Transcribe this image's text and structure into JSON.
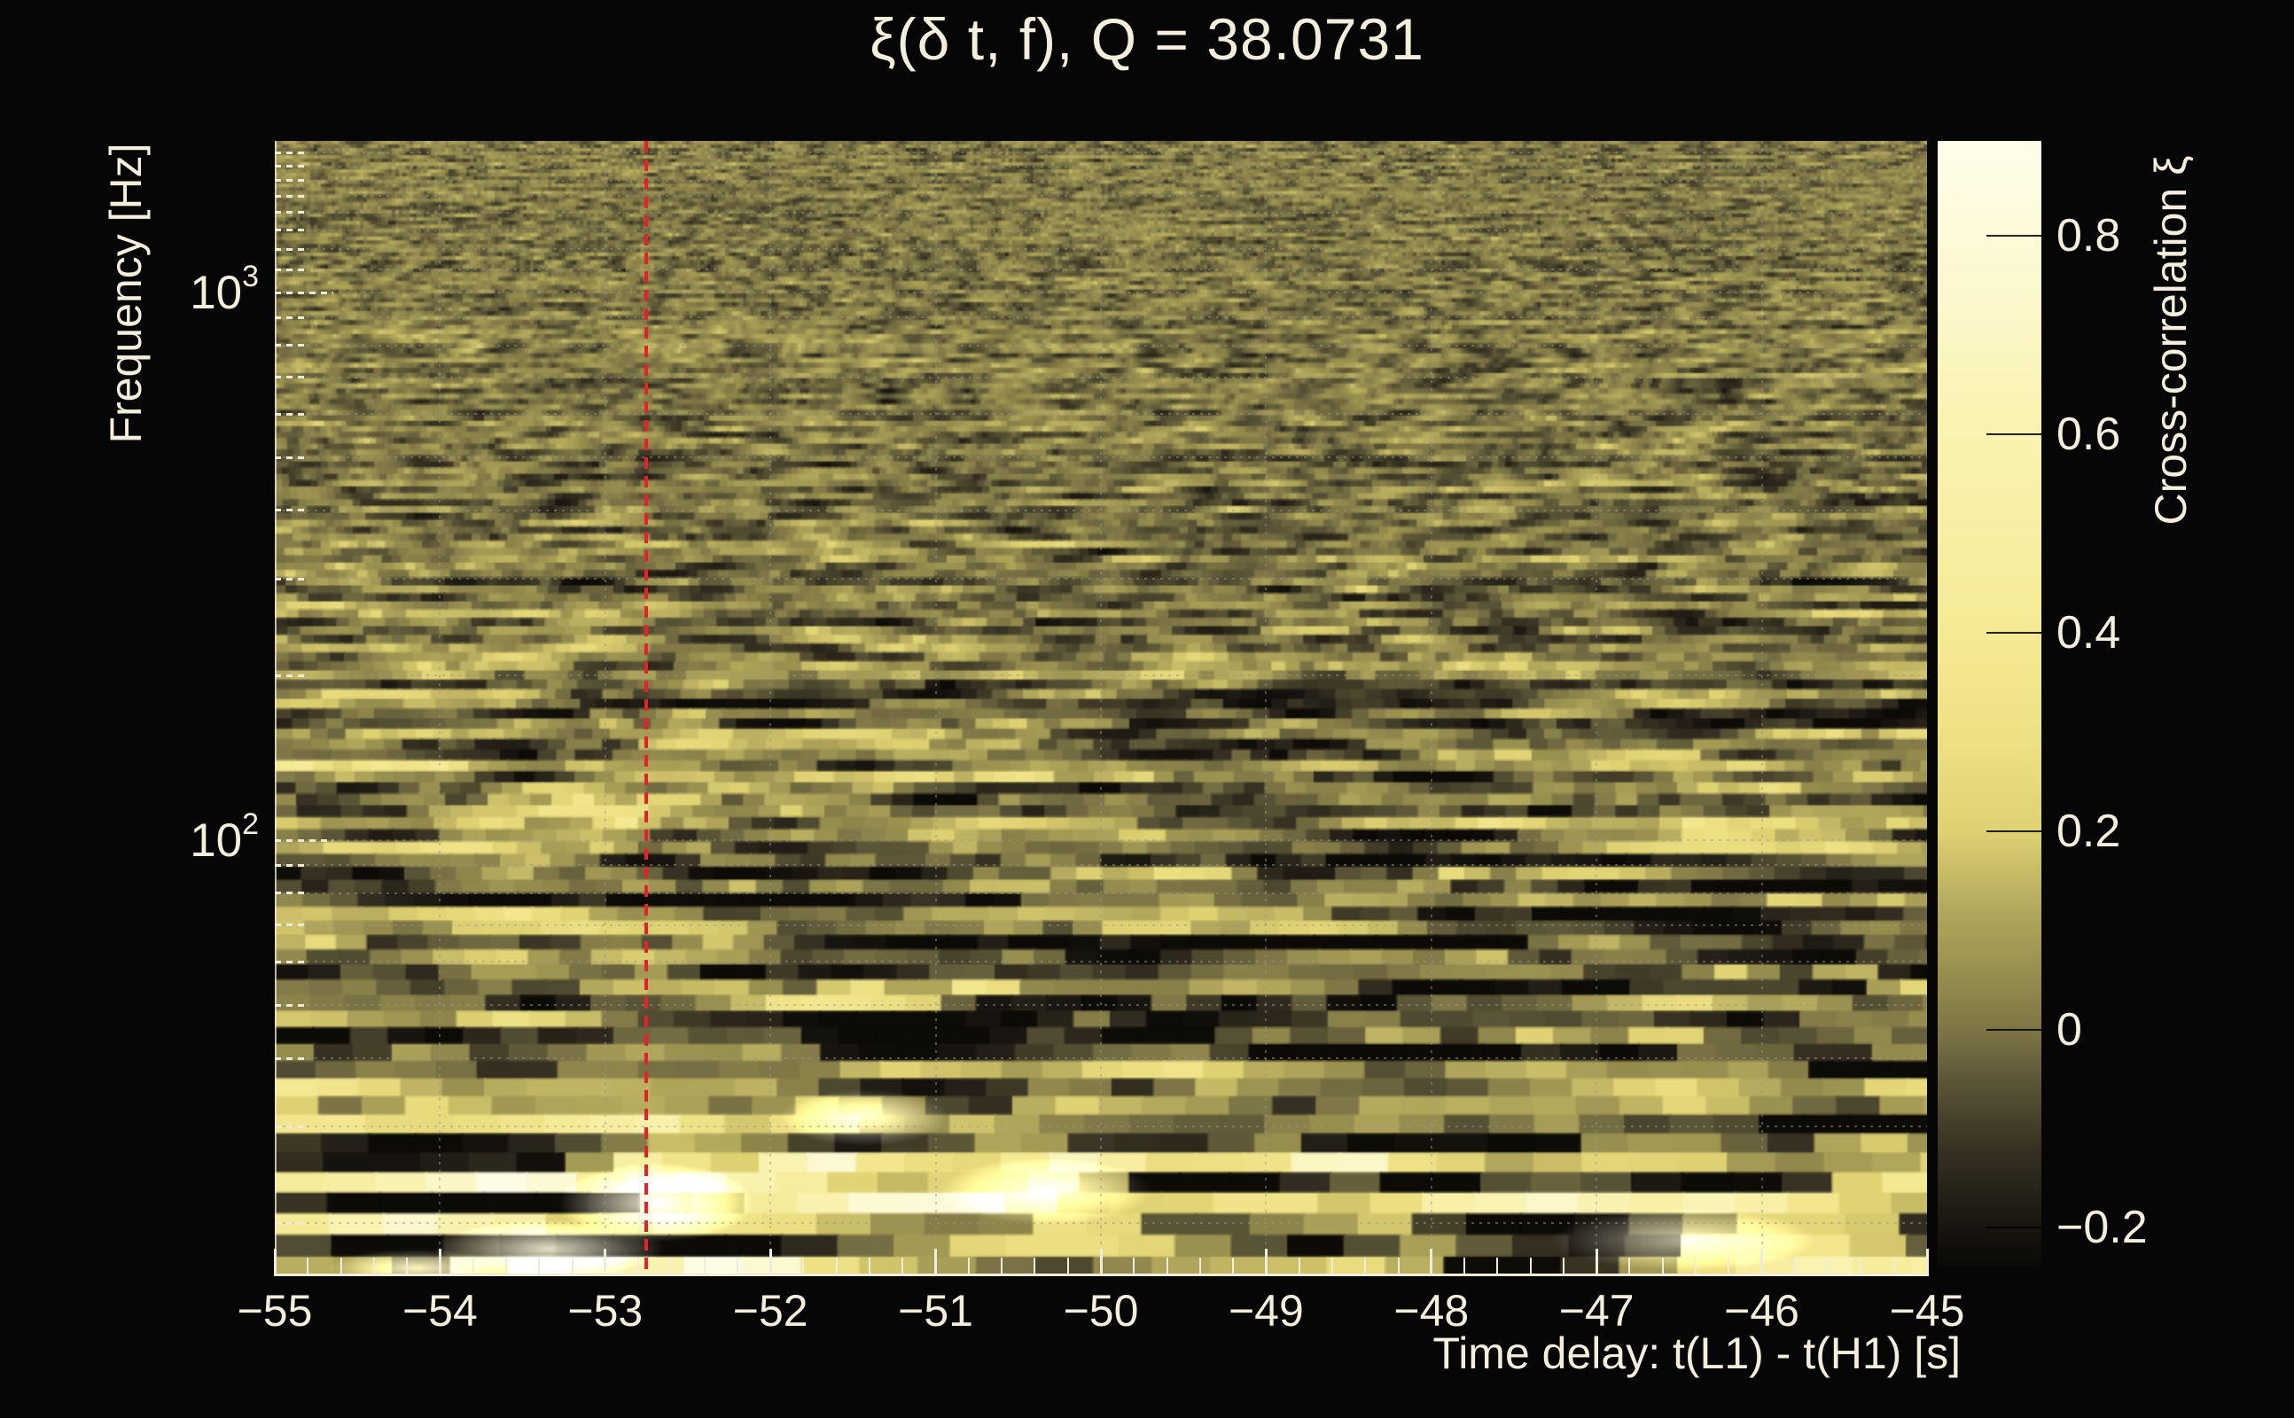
{
  "title": "ξ(δ t, f), Q = 38.0731",
  "x_axis": {
    "label": "Time delay: t(L1) - t(H1) [s]",
    "range_s": [
      -55,
      -45
    ],
    "tick_values": [
      -55,
      -54,
      -53,
      -52,
      -51,
      -50,
      -49,
      -48,
      -47,
      -46,
      -45
    ],
    "tick_labels": [
      "−55",
      "−54",
      "−53",
      "−52",
      "−51",
      "−50",
      "−49",
      "−48",
      "−47",
      "−46",
      "−45"
    ],
    "minor_tick_step_s": 0.2
  },
  "y_axis": {
    "label": "Frequency [Hz]",
    "scale": "log",
    "range_hz": [
      16,
      1891
    ],
    "major_ticks_hz": [
      100,
      1000
    ],
    "tick_labels": [
      {
        "base": "10",
        "exp": "3",
        "hz": 1000
      },
      {
        "base": "10",
        "exp": "2",
        "hz": 100
      }
    ]
  },
  "colorbar": {
    "label": "Cross-correlation ξ",
    "range": [
      -0.239,
      0.896
    ],
    "tick_values": [
      0.8,
      0.6,
      0.4,
      0.2,
      0,
      -0.2
    ],
    "tick_labels": [
      "0.8",
      "0.6",
      "0.4",
      "0.2",
      "0",
      "−0.2"
    ],
    "colormap": [
      {
        "v": -0.24,
        "c": "#0a0906"
      },
      {
        "v": -0.2,
        "c": "#181510"
      },
      {
        "v": -0.12,
        "c": "#363122"
      },
      {
        "v": -0.05,
        "c": "#5d5738"
      },
      {
        "v": 0.0,
        "c": "#7e7646"
      },
      {
        "v": 0.06,
        "c": "#98904f"
      },
      {
        "v": 0.12,
        "c": "#b2a85c"
      },
      {
        "v": 0.2,
        "c": "#ddd172"
      },
      {
        "v": 0.28,
        "c": "#ebdf82"
      },
      {
        "v": 0.38,
        "c": "#f4e992"
      },
      {
        "v": 0.5,
        "c": "#f7efa3"
      },
      {
        "v": 0.62,
        "c": "#f9f3b2"
      },
      {
        "v": 0.75,
        "c": "#fcf8cf"
      },
      {
        "v": 0.9,
        "c": "#fffdea"
      }
    ]
  },
  "marker_line": {
    "x_seconds": -52.75,
    "color": "#e6212a",
    "style": "dashed"
  },
  "colors": {
    "background": "#070606",
    "text": "#f3efdc",
    "axis": "#f0ecd9",
    "grid": "#969696",
    "marker_red": "#e6212a"
  },
  "chart_data": {
    "type": "heatmap",
    "title": "ξ(δ t, f), Q = 38.0731",
    "xlabel": "Time delay: t(L1) - t(H1) [s]",
    "ylabel": "Frequency [Hz]",
    "colorbar_label": "Cross-correlation ξ",
    "x_range_s": [
      -55,
      -45
    ],
    "x_tick_labels": [
      "−55",
      "−54",
      "−53",
      "−52",
      "−51",
      "−50",
      "−49",
      "−48",
      "−47",
      "−46",
      "−45"
    ],
    "y_scale": "log",
    "y_range_hz": [
      16,
      1891
    ],
    "y_tick_labels": [
      "10^2",
      "10^3"
    ],
    "colorbar_ticks": [
      0.8,
      0.6,
      0.4,
      0.2,
      0,
      -0.2
    ],
    "colorbar_range": [
      -0.24,
      0.9
    ],
    "q_value": 38.0731,
    "marker_line_x_s": -52.75,
    "legend_position": "right-colorbar",
    "grid": "dotted minor log-frequency gridlines and dotted integer-second gridlines",
    "description": "Dense stochastic cross-correlation noise map: fine-grained olive noise above ~150 Hz; larger, high-contrast elongated blobs below ~100 Hz; bright cream streaks near 16–40 Hz (strongest around δt ≈ −52.8 s); darker horizontal band near 60–80 Hz; dashed red vertical cursor at δt ≈ −52.75 s spanning the full frequency range."
  }
}
